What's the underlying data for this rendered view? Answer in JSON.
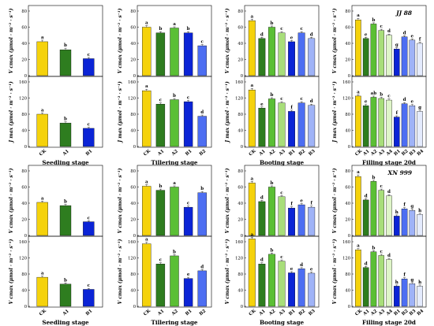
{
  "colors": {
    "CK": "#f5d20b",
    "A1": "#2e7d1f",
    "A2": "#5bbf35",
    "A3": "#a8de7a",
    "A4": "#dff5c8",
    "B1": "#0b24d6",
    "B2": "#4d6ef2",
    "B3": "#9fb3f7",
    "B4": "#e4ebfd"
  },
  "stages": {
    "seedling": "Seedling stage",
    "tillering": "Tillering stage",
    "booting": "Booting stage",
    "filling": "Filling stage 20d"
  },
  "chart_data": [
    {
      "group": 0,
      "stage": "seedling",
      "metric": "vcmax",
      "type": "bar",
      "ylabel": "V cmax (μmol · m⁻² · s⁻¹)",
      "ylim": [
        0,
        80
      ],
      "yticks": [
        0,
        20,
        40,
        60,
        80
      ],
      "categories": [
        "CK",
        "A1",
        "B1"
      ],
      "values": [
        42,
        32,
        21
      ],
      "errors": [
        2,
        2,
        1.5
      ],
      "letters": [
        "a",
        "b",
        "c"
      ]
    },
    {
      "group": 0,
      "stage": "tillering",
      "metric": "vcmax",
      "type": "bar",
      "ylabel": "V cmax (μmol · m⁻² · s⁻¹)",
      "ylim": [
        0,
        80
      ],
      "yticks": [
        0,
        20,
        40,
        60,
        80
      ],
      "categories": [
        "CK",
        "A1",
        "A2",
        "B1",
        "B2"
      ],
      "values": [
        60,
        53,
        59,
        53,
        37
      ],
      "errors": [
        2,
        1.5,
        1.5,
        1.5,
        1.5
      ],
      "letters": [
        "a",
        "b",
        "a",
        "b",
        "c"
      ]
    },
    {
      "group": 0,
      "stage": "booting",
      "metric": "vcmax",
      "type": "bar",
      "ylabel": "V cmax (μmol · m⁻² · s⁻¹)",
      "ylim": [
        0,
        80
      ],
      "yticks": [
        0,
        20,
        40,
        60,
        80
      ],
      "categories": [
        "CK",
        "A1",
        "A2",
        "A3",
        "B1",
        "B2",
        "B3"
      ],
      "values": [
        68,
        46,
        60,
        53,
        42,
        53,
        46
      ],
      "errors": [
        2,
        1.5,
        1.5,
        1.5,
        1.5,
        1.5,
        1.5
      ],
      "letters": [
        "a",
        "d",
        "b",
        "c",
        "e",
        "c",
        "d"
      ]
    },
    {
      "group": 0,
      "stage": "filling",
      "metric": "vcmax",
      "type": "bar",
      "ylabel": "V cmax (μmol · m⁻² · s⁻¹)",
      "ylim": [
        0,
        80
      ],
      "yticks": [
        0,
        20,
        40,
        60,
        80
      ],
      "categories": [
        "CK",
        "A1",
        "A2",
        "A3",
        "A4",
        "B1",
        "B2",
        "B3",
        "B4"
      ],
      "values": [
        69,
        46,
        64,
        56,
        50,
        33,
        48,
        44,
        40
      ],
      "errors": [
        2,
        1.5,
        1.5,
        1.5,
        1.5,
        1.5,
        1.5,
        1.5,
        1.5
      ],
      "letters": [
        "a",
        "e",
        "b",
        "c",
        "d",
        "g",
        "d",
        "e",
        "f"
      ]
    },
    {
      "group": 0,
      "stage": "seedling",
      "metric": "jmax",
      "type": "bar",
      "ylabel": "J max (μmol · m⁻² · s⁻¹)",
      "ylim": [
        0,
        160
      ],
      "yticks": [
        0,
        40,
        80,
        120,
        160
      ],
      "categories": [
        "CK",
        "A1",
        "B1"
      ],
      "values": [
        80,
        58,
        45
      ],
      "errors": [
        3,
        3,
        2.5
      ],
      "letters": [
        "a",
        "b",
        "c"
      ]
    },
    {
      "group": 0,
      "stage": "tillering",
      "metric": "jmax",
      "type": "bar",
      "ylabel": "J max (μmol · m⁻² · s⁻¹)",
      "ylim": [
        0,
        160
      ],
      "yticks": [
        0,
        40,
        80,
        120,
        160
      ],
      "categories": [
        "CK",
        "A1",
        "A2",
        "B1",
        "B2"
      ],
      "values": [
        138,
        105,
        116,
        111,
        75
      ],
      "errors": [
        4,
        3,
        3,
        3,
        3
      ],
      "letters": [
        "a",
        "c",
        "b",
        "c",
        "d"
      ]
    },
    {
      "group": 0,
      "stage": "booting",
      "metric": "jmax",
      "type": "bar",
      "ylabel": "J max (μmol · m⁻² · s⁻¹)",
      "ylim": [
        0,
        160
      ],
      "yticks": [
        0,
        40,
        80,
        120,
        160
      ],
      "categories": [
        "CK",
        "A1",
        "A2",
        "A3",
        "B1",
        "B2",
        "B3"
      ],
      "values": [
        140,
        95,
        118,
        108,
        87,
        108,
        102
      ],
      "errors": [
        4,
        3,
        3,
        3,
        3,
        3,
        3
      ],
      "letters": [
        "a",
        "e",
        "b",
        "c",
        "f",
        "c",
        "d"
      ]
    },
    {
      "group": 0,
      "stage": "filling",
      "metric": "jmax",
      "type": "bar",
      "ylabel": "J max (μmol · m⁻² · s⁻¹)",
      "ylim": [
        0,
        160
      ],
      "yticks": [
        0,
        40,
        80,
        120,
        160
      ],
      "categories": [
        "CK",
        "A1",
        "A2",
        "A3",
        "A4",
        "B1",
        "B2",
        "B3",
        "B4"
      ],
      "values": [
        125,
        101,
        122,
        119,
        115,
        73,
        106,
        101,
        87
      ],
      "errors": [
        3,
        3,
        3,
        3,
        3,
        3,
        3,
        3,
        3
      ],
      "letters": [
        "a",
        "e",
        "ab",
        "b",
        "c",
        "f",
        "d",
        "e",
        "g"
      ]
    },
    {
      "group": 1,
      "stage": "seedling",
      "metric": "vcmax",
      "type": "bar",
      "ylabel": "V cmax (μmol · m⁻² · s⁻¹)",
      "ylim": [
        0,
        80
      ],
      "yticks": [
        0,
        20,
        40,
        60,
        80
      ],
      "categories": [
        "CK",
        "A1",
        "B1"
      ],
      "values": [
        41,
        37,
        17
      ],
      "errors": [
        1.5,
        1.5,
        1.2
      ],
      "letters": [
        "a",
        "b",
        "c"
      ]
    },
    {
      "group": 1,
      "stage": "tillering",
      "metric": "vcmax",
      "type": "bar",
      "ylabel": "V cmax (μmol · m⁻² · s⁻¹)",
      "ylim": [
        0,
        80
      ],
      "yticks": [
        0,
        20,
        40,
        60,
        80
      ],
      "categories": [
        "CK",
        "A1",
        "A2",
        "B1",
        "B2"
      ],
      "values": [
        61,
        56,
        60,
        35,
        53
      ],
      "errors": [
        2,
        1.5,
        1.5,
        1.5,
        1.5
      ],
      "letters": [
        "a",
        "b",
        "a",
        "c",
        "b"
      ]
    },
    {
      "group": 1,
      "stage": "booting",
      "metric": "vcmax",
      "type": "bar",
      "ylabel": "V cmax (μmol · m⁻² · s⁻¹)",
      "ylim": [
        0,
        80
      ],
      "yticks": [
        0,
        20,
        40,
        60,
        80
      ],
      "categories": [
        "CK",
        "A1",
        "A2",
        "A3",
        "B1",
        "B2",
        "B3"
      ],
      "values": [
        65,
        42,
        60,
        48,
        34,
        38,
        35
      ],
      "errors": [
        2,
        1.5,
        1.5,
        1.5,
        1.5,
        1.5,
        1.5
      ],
      "letters": [
        "a",
        "d",
        "b",
        "c",
        "f",
        "e",
        "f"
      ]
    },
    {
      "group": 1,
      "stage": "filling",
      "metric": "vcmax",
      "type": "bar",
      "ylabel": "V cmax (μmol · m⁻² · s⁻¹)",
      "ylim": [
        0,
        80
      ],
      "yticks": [
        0,
        20,
        40,
        60,
        80
      ],
      "categories": [
        "CK",
        "A1",
        "A2",
        "A3",
        "A4",
        "B1",
        "B2",
        "B3",
        "B4"
      ],
      "values": [
        73,
        44,
        67,
        56,
        49,
        24,
        33,
        31,
        26
      ],
      "errors": [
        2,
        1.5,
        1.5,
        1.5,
        1.5,
        1.5,
        1.5,
        1.5,
        1.5
      ],
      "letters": [
        "a",
        "d",
        "b",
        "c",
        "d",
        "h",
        "f",
        "g",
        "h"
      ]
    },
    {
      "group": 1,
      "stage": "seedling",
      "metric": "jmax",
      "type": "bar",
      "ylabel": "V cmax (μmol · m⁻² · s⁻¹)",
      "ylim": [
        0,
        160
      ],
      "yticks": [
        0,
        40,
        80,
        120,
        160
      ],
      "categories": [
        "CK",
        "A1",
        "B1"
      ],
      "values": [
        72,
        55,
        42
      ],
      "errors": [
        3,
        3,
        2.5
      ],
      "letters": [
        "a",
        "b",
        "c"
      ]
    },
    {
      "group": 1,
      "stage": "tillering",
      "metric": "jmax",
      "type": "bar",
      "ylabel": "V cmax (μmol · m⁻² · s⁻¹)",
      "ylim": [
        0,
        160
      ],
      "yticks": [
        0,
        40,
        80,
        120,
        160
      ],
      "categories": [
        "CK",
        "A1",
        "A2",
        "B1",
        "B2"
      ],
      "values": [
        155,
        105,
        125,
        69,
        88
      ],
      "errors": [
        4,
        3,
        3,
        3,
        3
      ],
      "letters": [
        "a",
        "c",
        "b",
        "e",
        "d"
      ]
    },
    {
      "group": 1,
      "stage": "booting",
      "metric": "jmax",
      "type": "bar",
      "ylabel": "V cmax (μmol · m⁻² · s⁻¹)",
      "ylim": [
        0,
        160
      ],
      "yticks": [
        0,
        40,
        80,
        120,
        160
      ],
      "categories": [
        "CK",
        "A1",
        "A2",
        "A3",
        "B1",
        "B2",
        "B3"
      ],
      "values": [
        167,
        105,
        129,
        112,
        83,
        93,
        82
      ],
      "errors": [
        4,
        3,
        3,
        3,
        3,
        3,
        3
      ],
      "letters": [
        "a",
        "d",
        "b",
        "c",
        "e",
        "d",
        "e"
      ]
    },
    {
      "group": 1,
      "stage": "filling",
      "metric": "jmax",
      "type": "bar",
      "ylabel": "V cmax (μmol · m⁻² · s⁻¹)",
      "ylim": [
        0,
        160
      ],
      "yticks": [
        0,
        40,
        80,
        120,
        160
      ],
      "categories": [
        "CK",
        "A1",
        "A2",
        "A3",
        "A4",
        "B1",
        "B2",
        "B3",
        "B4"
      ],
      "values": [
        140,
        96,
        135,
        126,
        116,
        50,
        68,
        56,
        50
      ],
      "errors": [
        3,
        3,
        3,
        3,
        3,
        3,
        3,
        3,
        3
      ],
      "letters": [
        "a",
        "d",
        "b",
        "c",
        "d",
        "h",
        "f",
        "g",
        "h"
      ]
    }
  ],
  "group_labels": [
    "JJ 88",
    "XN 999"
  ]
}
